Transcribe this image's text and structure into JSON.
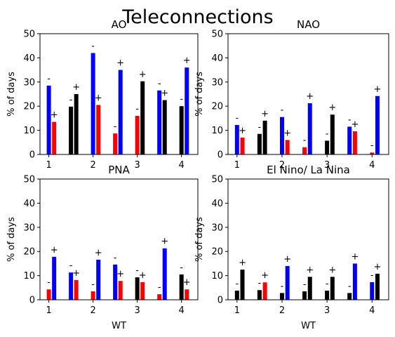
{
  "figure_title": "Teleconnections",
  "chart_data": [
    {
      "type": "bar",
      "title": "AO",
      "xlabel": "",
      "ylabel": "% of days",
      "ylim": [
        0,
        50
      ],
      "yticks": [
        "0",
        "10",
        "20",
        "30",
        "40",
        "50"
      ],
      "xticks": [
        1,
        2,
        3,
        4
      ],
      "xticklabels": [
        "1",
        "2",
        "3",
        "4"
      ],
      "bars": [
        {
          "x": 1.0,
          "value": 28.5,
          "color": "#0000ff",
          "sign": "-"
        },
        {
          "x": 1.12,
          "value": 13.5,
          "color": "#ff0000",
          "sign": "+"
        },
        {
          "x": 1.5,
          "value": 19.8,
          "color": "#000000",
          "sign": "-"
        },
        {
          "x": 1.62,
          "value": 25.0,
          "color": "#000000",
          "sign": "+"
        },
        {
          "x": 2.0,
          "value": 42.0,
          "color": "#0000ff",
          "sign": "-"
        },
        {
          "x": 2.12,
          "value": 20.5,
          "color": "#ff0000",
          "sign": "+"
        },
        {
          "x": 2.5,
          "value": 8.7,
          "color": "#ff0000",
          "sign": "-"
        },
        {
          "x": 2.62,
          "value": 35.0,
          "color": "#0000ff",
          "sign": "+"
        },
        {
          "x": 3.0,
          "value": 16.0,
          "color": "#ff0000",
          "sign": "-"
        },
        {
          "x": 3.12,
          "value": 30.3,
          "color": "#000000",
          "sign": "+"
        },
        {
          "x": 3.5,
          "value": 26.5,
          "color": "#0000ff",
          "sign": "-"
        },
        {
          "x": 3.62,
          "value": 22.5,
          "color": "#000000",
          "sign": "+"
        },
        {
          "x": 4.0,
          "value": 20.0,
          "color": "#000000",
          "sign": "-"
        },
        {
          "x": 4.12,
          "value": 36.0,
          "color": "#0000ff",
          "sign": "+"
        }
      ]
    },
    {
      "type": "bar",
      "title": "NAO",
      "xlabel": "",
      "ylabel": "% of days",
      "ylim": [
        0,
        50
      ],
      "yticks": [
        "0",
        "10",
        "20",
        "30",
        "40",
        "50"
      ],
      "xticks": [
        1,
        2,
        3,
        4
      ],
      "xticklabels": [
        "1",
        "2",
        "3",
        "4"
      ],
      "bars": [
        {
          "x": 1.0,
          "value": 12.2,
          "color": "#0000ff",
          "sign": "-"
        },
        {
          "x": 1.12,
          "value": 7.0,
          "color": "#ff0000",
          "sign": "+"
        },
        {
          "x": 1.5,
          "value": 8.5,
          "color": "#000000",
          "sign": "-"
        },
        {
          "x": 1.62,
          "value": 14.0,
          "color": "#000000",
          "sign": "+"
        },
        {
          "x": 2.0,
          "value": 15.5,
          "color": "#0000ff",
          "sign": "-"
        },
        {
          "x": 2.12,
          "value": 6.0,
          "color": "#ff0000",
          "sign": "+"
        },
        {
          "x": 2.5,
          "value": 3.0,
          "color": "#ff0000",
          "sign": "-"
        },
        {
          "x": 2.62,
          "value": 21.2,
          "color": "#0000ff",
          "sign": "+"
        },
        {
          "x": 3.0,
          "value": 5.7,
          "color": "#000000",
          "sign": "-"
        },
        {
          "x": 3.12,
          "value": 16.5,
          "color": "#000000",
          "sign": "+"
        },
        {
          "x": 3.5,
          "value": 11.5,
          "color": "#0000ff",
          "sign": "-"
        },
        {
          "x": 3.62,
          "value": 9.6,
          "color": "#ff0000",
          "sign": "+"
        },
        {
          "x": 4.0,
          "value": 0.8,
          "color": "#ff0000",
          "sign": "-"
        },
        {
          "x": 4.12,
          "value": 24.2,
          "color": "#0000ff",
          "sign": "+"
        }
      ]
    },
    {
      "type": "bar",
      "title": "PNA",
      "xlabel": "WT",
      "ylabel": "% of days",
      "ylim": [
        0,
        50
      ],
      "yticks": [
        "0",
        "10",
        "20",
        "30",
        "40",
        "50"
      ],
      "xticks": [
        1,
        2,
        3,
        4
      ],
      "xticklabels": [
        "1",
        "2",
        "3",
        "4"
      ],
      "bars": [
        {
          "x": 1.0,
          "value": 4.3,
          "color": "#ff0000",
          "sign": "-"
        },
        {
          "x": 1.12,
          "value": 17.8,
          "color": "#0000ff",
          "sign": "+"
        },
        {
          "x": 1.5,
          "value": 11.3,
          "color": "#0000ff",
          "sign": "-"
        },
        {
          "x": 1.62,
          "value": 8.2,
          "color": "#ff0000",
          "sign": "+"
        },
        {
          "x": 2.0,
          "value": 3.5,
          "color": "#ff0000",
          "sign": "-"
        },
        {
          "x": 2.12,
          "value": 16.6,
          "color": "#0000ff",
          "sign": "+"
        },
        {
          "x": 2.5,
          "value": 14.6,
          "color": "#0000ff",
          "sign": "-"
        },
        {
          "x": 2.62,
          "value": 7.8,
          "color": "#ff0000",
          "sign": "+"
        },
        {
          "x": 3.0,
          "value": 9.3,
          "color": "#000000",
          "sign": "-"
        },
        {
          "x": 3.12,
          "value": 7.3,
          "color": "#ff0000",
          "sign": "+"
        },
        {
          "x": 3.5,
          "value": 2.3,
          "color": "#ff0000",
          "sign": "-"
        },
        {
          "x": 3.62,
          "value": 21.3,
          "color": "#0000ff",
          "sign": "+"
        },
        {
          "x": 4.0,
          "value": 10.5,
          "color": "#000000",
          "sign": "-"
        },
        {
          "x": 4.12,
          "value": 4.3,
          "color": "#ff0000",
          "sign": "+"
        }
      ]
    },
    {
      "type": "bar",
      "title": "El Nino/ La Nina",
      "xlabel": "WT",
      "ylabel": "% of days",
      "ylim": [
        0,
        50
      ],
      "yticks": [
        "0",
        "10",
        "20",
        "30",
        "40",
        "50"
      ],
      "xticks": [
        1,
        2,
        3,
        4
      ],
      "xticklabels": [
        "1",
        "2",
        "3",
        "4"
      ],
      "bars": [
        {
          "x": 1.0,
          "value": 3.8,
          "color": "#000000",
          "sign": "-"
        },
        {
          "x": 1.12,
          "value": 12.5,
          "color": "#000000",
          "sign": "+"
        },
        {
          "x": 1.5,
          "value": 4.0,
          "color": "#000000",
          "sign": "-"
        },
        {
          "x": 1.62,
          "value": 7.2,
          "color": "#ff0000",
          "sign": "+"
        },
        {
          "x": 2.0,
          "value": 2.8,
          "color": "#000000",
          "sign": "-"
        },
        {
          "x": 2.12,
          "value": 14.0,
          "color": "#0000ff",
          "sign": "+"
        },
        {
          "x": 2.5,
          "value": 3.5,
          "color": "#000000",
          "sign": "-"
        },
        {
          "x": 2.62,
          "value": 9.5,
          "color": "#000000",
          "sign": "+"
        },
        {
          "x": 3.0,
          "value": 3.8,
          "color": "#000000",
          "sign": "-"
        },
        {
          "x": 3.12,
          "value": 9.5,
          "color": "#000000",
          "sign": "+"
        },
        {
          "x": 3.5,
          "value": 2.8,
          "color": "#000000",
          "sign": "-"
        },
        {
          "x": 3.62,
          "value": 15.0,
          "color": "#0000ff",
          "sign": "+"
        },
        {
          "x": 4.0,
          "value": 7.3,
          "color": "#0000ff",
          "sign": "-"
        },
        {
          "x": 4.12,
          "value": 10.8,
          "color": "#000000",
          "sign": "+"
        }
      ]
    }
  ]
}
